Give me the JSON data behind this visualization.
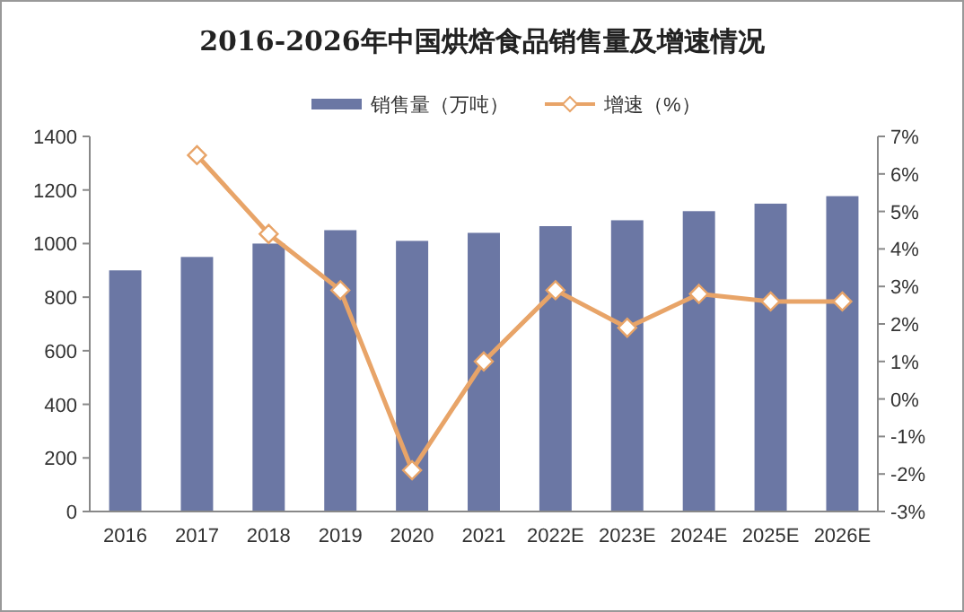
{
  "chart_data": {
    "type": "bar",
    "title": "2016-2026年中国烘焙食品销售量及增速情况",
    "categories": [
      "2016",
      "2017",
      "2018",
      "2019",
      "2020",
      "2021",
      "2022E",
      "2023E",
      "2024E",
      "2025E",
      "2026E"
    ],
    "series": [
      {
        "name": "销售量（万吨）",
        "color": "#6b77a4",
        "values": [
          900,
          950,
          1000,
          1050,
          1010,
          1040,
          1065,
          1087,
          1121,
          1149,
          1177
        ]
      },
      {
        "name": "增速（%）",
        "type": "line",
        "axis": "y2",
        "color": "#e8a468",
        "marker": "diamond",
        "values": [
          null,
          6.5,
          4.4,
          2.9,
          -1.9,
          1.0,
          2.9,
          1.9,
          2.8,
          2.6,
          2.6
        ]
      }
    ],
    "ylim": [
      0,
      1400
    ],
    "yticks": [
      0,
      200,
      400,
      600,
      800,
      1000,
      1200,
      1400
    ],
    "y2lim": [
      -3,
      7
    ],
    "y2ticks": [
      {
        "value": -3,
        "label": "-3%"
      },
      {
        "value": -2,
        "label": "-2%"
      },
      {
        "value": -1,
        "label": "-1%"
      },
      {
        "value": 0,
        "label": "0%"
      },
      {
        "value": 1,
        "label": "1%"
      },
      {
        "value": 2,
        "label": "2%"
      },
      {
        "value": 3,
        "label": "3%"
      },
      {
        "value": 4,
        "label": "4%"
      },
      {
        "value": 5,
        "label": "5%"
      },
      {
        "value": 6,
        "label": "6%"
      },
      {
        "value": 7,
        "label": "7%"
      }
    ],
    "legend": "top",
    "grid": false
  }
}
